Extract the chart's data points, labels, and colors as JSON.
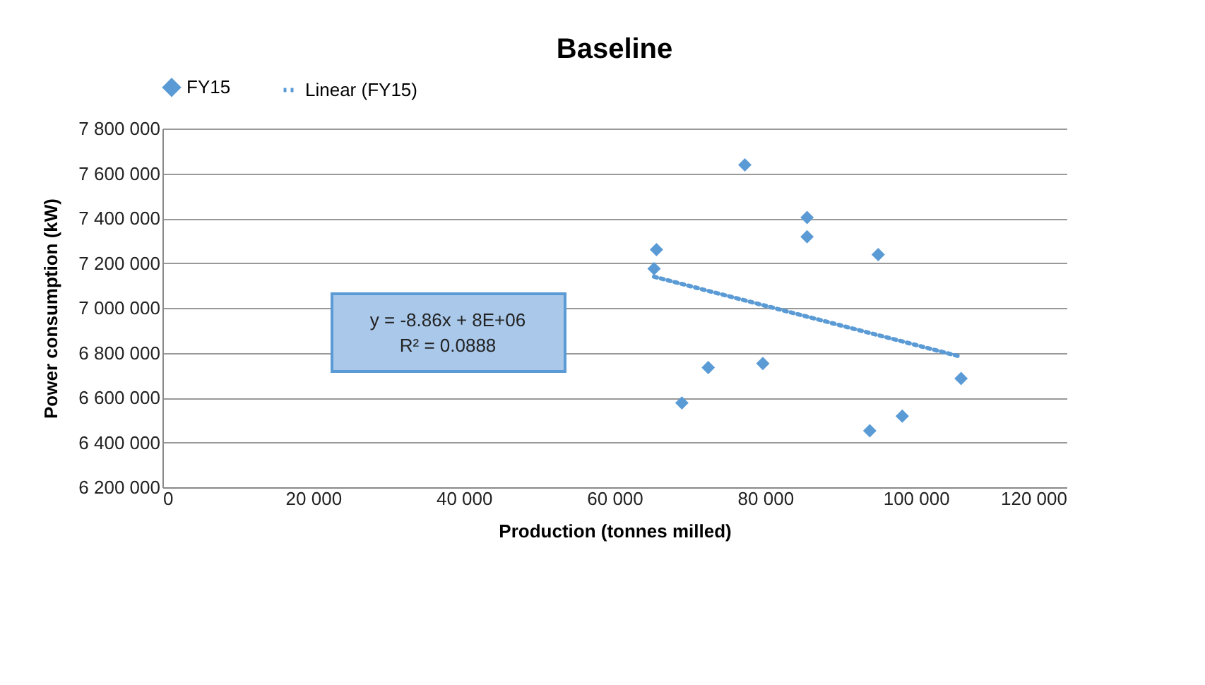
{
  "chart_data": {
    "type": "scatter",
    "title": "Baseline",
    "xlabel": "Production (tonnes milled)",
    "ylabel": "Power consumption  (kW)",
    "xlim": [
      0,
      120000
    ],
    "xticks": [
      0,
      {
        "value": 20000,
        "label": "20 000"
      },
      {
        "value": 40000,
        "label": "40 000"
      },
      {
        "value": 60000,
        "label": "60 000"
      },
      {
        "value": 80000,
        "label": "80 000"
      },
      {
        "value": 100000,
        "label": "100 000"
      },
      {
        "value": 120000,
        "label": "120 000"
      }
    ],
    "ylim": [
      6200000,
      7800000
    ],
    "yticks": [
      {
        "value": 6200000,
        "label": "6 200 000"
      },
      {
        "value": 6400000,
        "label": "6 400 000"
      },
      {
        "value": 6600000,
        "label": "6 600 000"
      },
      {
        "value": 6800000,
        "label": "6 800 000"
      },
      {
        "value": 7000000,
        "label": "7 000 000"
      },
      {
        "value": 7200000,
        "label": "7 200 000"
      },
      {
        "value": 7400000,
        "label": "7 400 000"
      },
      {
        "value": 7600000,
        "label": "7 600 000"
      },
      {
        "value": 7800000,
        "label": "7 800 000"
      }
    ],
    "grid": "y",
    "legend": "top",
    "annotations": [
      "y = -8.86x + 8E+06",
      "R² = 0.0888"
    ],
    "series": [
      {
        "name": "FY15",
        "color": "#5b9bd5",
        "marker": "diamond",
        "x": [
          65570,
          65250,
          77300,
          85560,
          85560,
          95000,
          72440,
          79690,
          68940,
          93880,
          98190,
          106000
        ],
        "values": [
          7260000,
          7175000,
          7638000,
          7403000,
          7317000,
          7238000,
          6734000,
          6752000,
          6576000,
          6452000,
          6517000,
          6685000
        ]
      },
      {
        "name": "Linear (FY15)",
        "type": "line",
        "line_style": "dotted",
        "color": "#5b9bd5",
        "x": [
          65250,
          106000
        ],
        "values": [
          7139000,
          6782000
        ]
      }
    ]
  }
}
